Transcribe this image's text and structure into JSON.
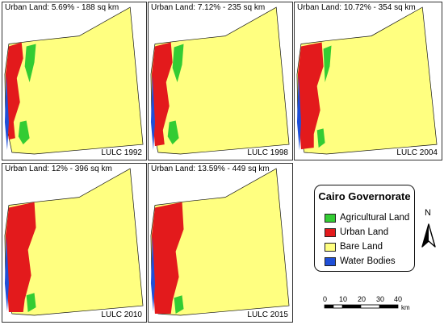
{
  "panels": [
    {
      "caption": "Urban Land: 5.69% - 188 sq km",
      "lulc_label": "LULC 1992",
      "urban_percent": 5.69,
      "urban_area_sq_km": 188
    },
    {
      "caption": "Urban Land: 7.12% - 235 sq km",
      "lulc_label": "LULC 1998",
      "urban_percent": 7.12,
      "urban_area_sq_km": 235
    },
    {
      "caption": "Urban Land: 10.72% - 354 sq km",
      "lulc_label": "LULC 2004",
      "urban_percent": 10.72,
      "urban_area_sq_km": 354
    },
    {
      "caption": "Urban Land: 12% - 396 sq km",
      "lulc_label": "LULC 2010",
      "urban_percent": 12,
      "urban_area_sq_km": 396
    },
    {
      "caption": "Urban Land: 13.59% - 449 sq km",
      "lulc_label": "LULC 2015",
      "urban_percent": 13.59,
      "urban_area_sq_km": 449
    }
  ],
  "legend": {
    "title": "Cairo Governorate",
    "items": [
      {
        "label": "Agricultural Land",
        "color": "#33cc33"
      },
      {
        "label": "Urban Land",
        "color": "#e31a1c"
      },
      {
        "label": "Bare Land",
        "color": "#ffff80"
      },
      {
        "label": "Water Bodies",
        "color": "#1f4fd8"
      }
    ]
  },
  "north_arrow": {
    "label": "N"
  },
  "scale_bar": {
    "ticks": [
      "0",
      "10",
      "20",
      "30",
      "40"
    ],
    "unit": "km"
  }
}
